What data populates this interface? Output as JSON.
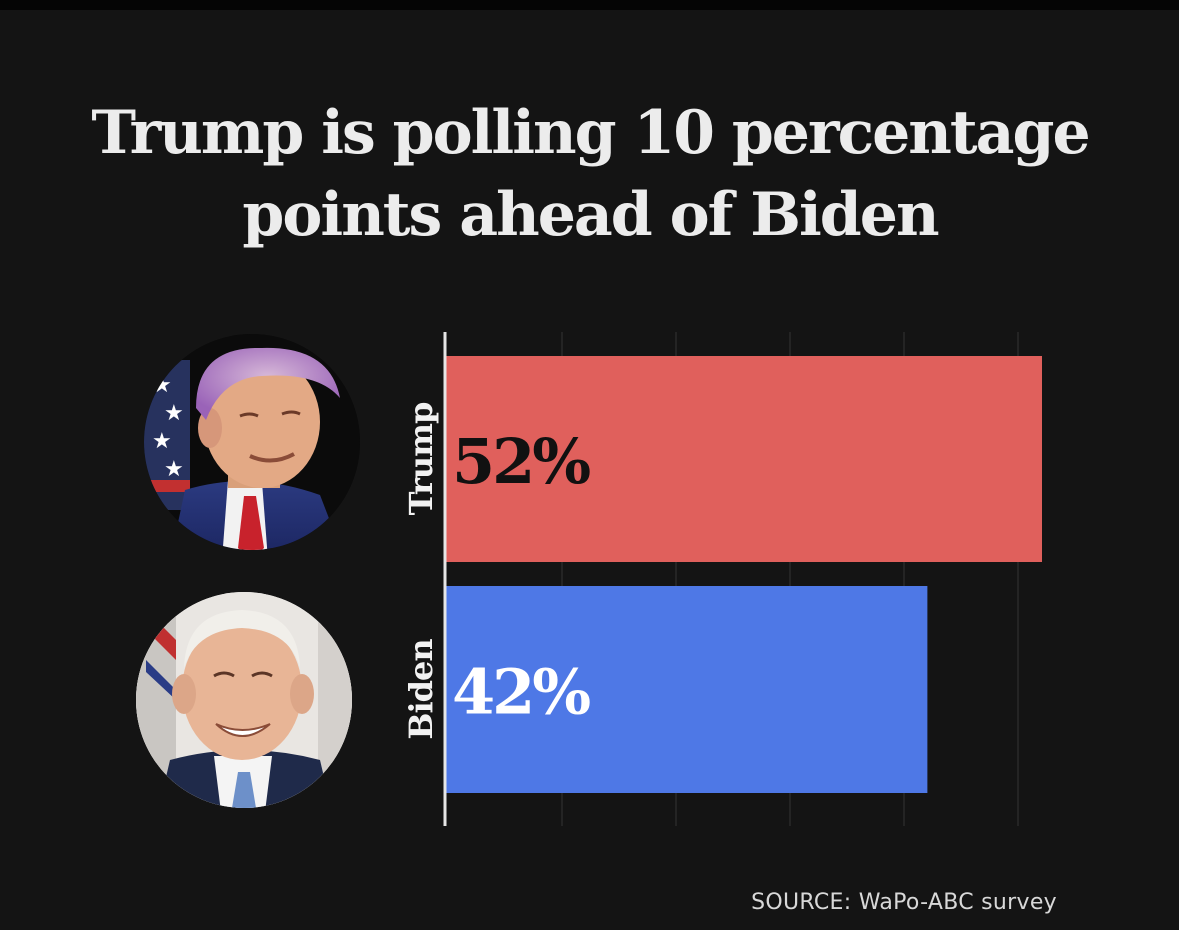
{
  "title": "Trump is polling 10 percentage points ahead of Biden",
  "source": "SOURCE: WaPo-ABC survey",
  "chart_data": {
    "type": "bar",
    "orientation": "horizontal",
    "title": "Trump is polling 10 percentage points ahead of Biden",
    "categories": [
      "Trump",
      "Biden"
    ],
    "values": [
      52,
      42
    ],
    "value_labels": [
      "52%",
      "42%"
    ],
    "xlim": [
      0,
      52
    ],
    "grid": true,
    "colors": [
      "#e0605c",
      "#4e78e6"
    ],
    "label_colors": [
      "#111111",
      "#ffffff"
    ],
    "source": "SOURCE: WaPo-ABC survey"
  },
  "colors": {
    "background": "#141414",
    "title": "#ececec",
    "gridline": "#2a2a2a",
    "axis": "#e6e6e6",
    "category_label": "#f2f2f2"
  },
  "photos": [
    {
      "subject": "Trump",
      "icon": "portrait-photo"
    },
    {
      "subject": "Biden",
      "icon": "portrait-photo"
    }
  ]
}
